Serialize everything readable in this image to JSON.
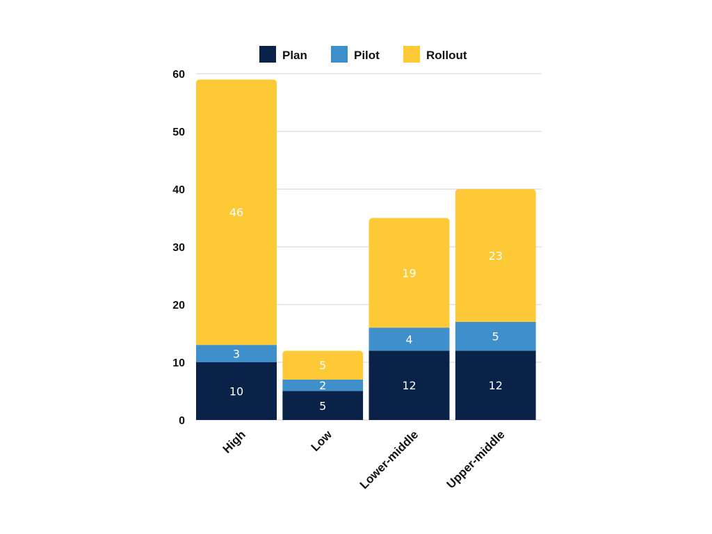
{
  "chart_data": {
    "type": "bar",
    "stacked": true,
    "categories": [
      "High",
      "Low",
      "Lower-middle",
      "Upper-middle"
    ],
    "series": [
      {
        "name": "Plan",
        "values": [
          10,
          5,
          12,
          12
        ],
        "color": "#0a2247"
      },
      {
        "name": "Pilot",
        "values": [
          3,
          2,
          4,
          5
        ],
        "color": "#3f8fcb"
      },
      {
        "name": "Rollout",
        "values": [
          46,
          5,
          19,
          23
        ],
        "color": "#fdc936"
      }
    ],
    "ylim": [
      0,
      60
    ],
    "yticks": [
      0,
      10,
      20,
      30,
      40,
      50,
      60
    ],
    "grid": true,
    "legend_position": "top",
    "data_label_color": "#ffffff"
  }
}
